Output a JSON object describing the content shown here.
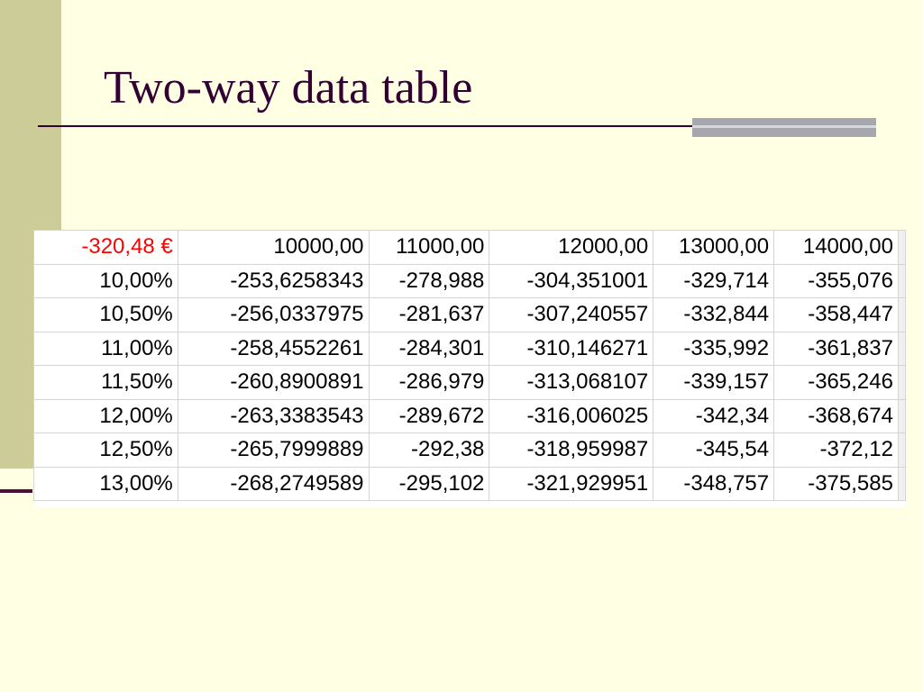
{
  "title": "Two-way data table",
  "table": {
    "rows": [
      [
        "-320,48 €",
        "10000,00",
        "11000,00",
        "12000,00",
        "13000,00",
        "14000,00"
      ],
      [
        "10,00%",
        "-253,6258343",
        "-278,988",
        "-304,351001",
        "-329,714",
        "-355,076"
      ],
      [
        "10,50%",
        "-256,0337975",
        "-281,637",
        "-307,240557",
        "-332,844",
        "-358,447"
      ],
      [
        "11,00%",
        "-258,4552261",
        "-284,301",
        "-310,146271",
        "-335,992",
        "-361,837"
      ],
      [
        "11,50%",
        "-260,8900891",
        "-286,979",
        "-313,068107",
        "-339,157",
        "-365,246"
      ],
      [
        "12,00%",
        "-263,3383543",
        "-289,672",
        "-316,006025",
        "-342,34",
        "-368,674"
      ],
      [
        "12,50%",
        "-265,7999889",
        "-292,38",
        "-318,959987",
        "-345,54",
        "-372,12"
      ],
      [
        "13,00%",
        "-268,2749589",
        "-295,102",
        "-321,929951",
        "-348,757",
        "-375,585"
      ]
    ]
  }
}
